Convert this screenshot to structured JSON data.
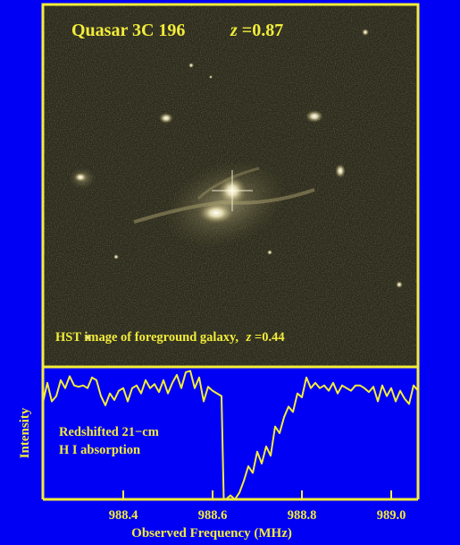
{
  "image_panel": {
    "title_object": "Quasar 3C 196",
    "title_z_symbol": "z",
    "title_z_value": "=0.87",
    "caption": "HST image of foreground galaxy,",
    "caption_z_symbol": "z",
    "caption_z_value": "=0.44"
  },
  "colors": {
    "background": "#0000f5",
    "frame": "#f2ec3a",
    "text": "#f2ec3a",
    "spectrum_line": "#f2ec3a",
    "sky": "#2b2a1b"
  },
  "chart_data": {
    "type": "line",
    "xlabel": "Observed Frequency (MHz)",
    "ylabel": "Intensity",
    "annotation_line1": "Redshifted 21−cm",
    "annotation_line2": "H I absorption",
    "xlim": [
      988.22,
      989.06
    ],
    "ylim": [
      0,
      1
    ],
    "xticks": [
      988.4,
      988.6,
      988.8,
      989.0
    ],
    "xtick_labels": [
      "988.4",
      "988.6",
      "988.8",
      "989.0"
    ],
    "yticks": [],
    "grid": false,
    "series": [
      {
        "x": [
          988.22,
          988.23,
          988.24,
          988.25,
          988.26,
          988.27,
          988.28,
          988.29,
          988.3,
          988.31,
          988.32,
          988.33,
          988.34,
          988.35,
          988.36,
          988.37,
          988.38,
          988.39,
          988.4,
          988.41,
          988.42,
          988.43,
          988.44,
          988.45,
          988.46,
          988.47,
          988.48,
          988.49,
          988.5,
          988.51,
          988.52,
          988.53,
          988.54,
          988.55,
          988.56,
          988.57,
          988.58,
          988.59,
          988.6,
          988.61,
          988.62,
          988.625,
          988.63,
          988.64,
          988.65,
          988.66,
          988.67,
          988.68,
          988.69,
          988.7,
          988.71,
          988.72,
          988.73,
          988.74,
          988.75,
          988.76,
          988.77,
          988.78,
          988.79,
          988.8,
          988.81,
          988.82,
          988.83,
          988.84,
          988.85,
          988.86,
          988.87,
          988.88,
          988.89,
          988.9,
          988.91,
          988.92,
          988.93,
          988.94,
          988.95,
          988.96,
          988.97,
          988.98,
          988.99,
          989.0,
          989.01,
          989.02,
          989.03,
          989.04,
          989.05,
          989.06
        ],
        "values": [
          0.73,
          0.88,
          0.74,
          0.78,
          0.9,
          0.84,
          0.93,
          0.86,
          0.85,
          0.86,
          0.84,
          0.92,
          0.9,
          0.78,
          0.71,
          0.8,
          0.75,
          0.82,
          0.84,
          0.74,
          0.84,
          0.86,
          0.8,
          0.9,
          0.84,
          0.87,
          0.81,
          0.9,
          0.8,
          0.88,
          0.94,
          0.84,
          0.96,
          0.97,
          0.84,
          0.92,
          0.74,
          0.85,
          0.82,
          0.8,
          0.78,
          0.0,
          0.0,
          0.03,
          0.0,
          0.05,
          0.14,
          0.25,
          0.2,
          0.36,
          0.27,
          0.4,
          0.33,
          0.55,
          0.5,
          0.62,
          0.7,
          0.66,
          0.8,
          0.77,
          0.92,
          0.84,
          0.88,
          0.84,
          0.86,
          0.82,
          0.88,
          0.8,
          0.86,
          0.84,
          0.82,
          0.86,
          0.86,
          0.84,
          0.81,
          0.85,
          0.74,
          0.86,
          0.78,
          0.84,
          0.74,
          0.82,
          0.76,
          0.72,
          0.86,
          0.82
        ]
      }
    ]
  }
}
